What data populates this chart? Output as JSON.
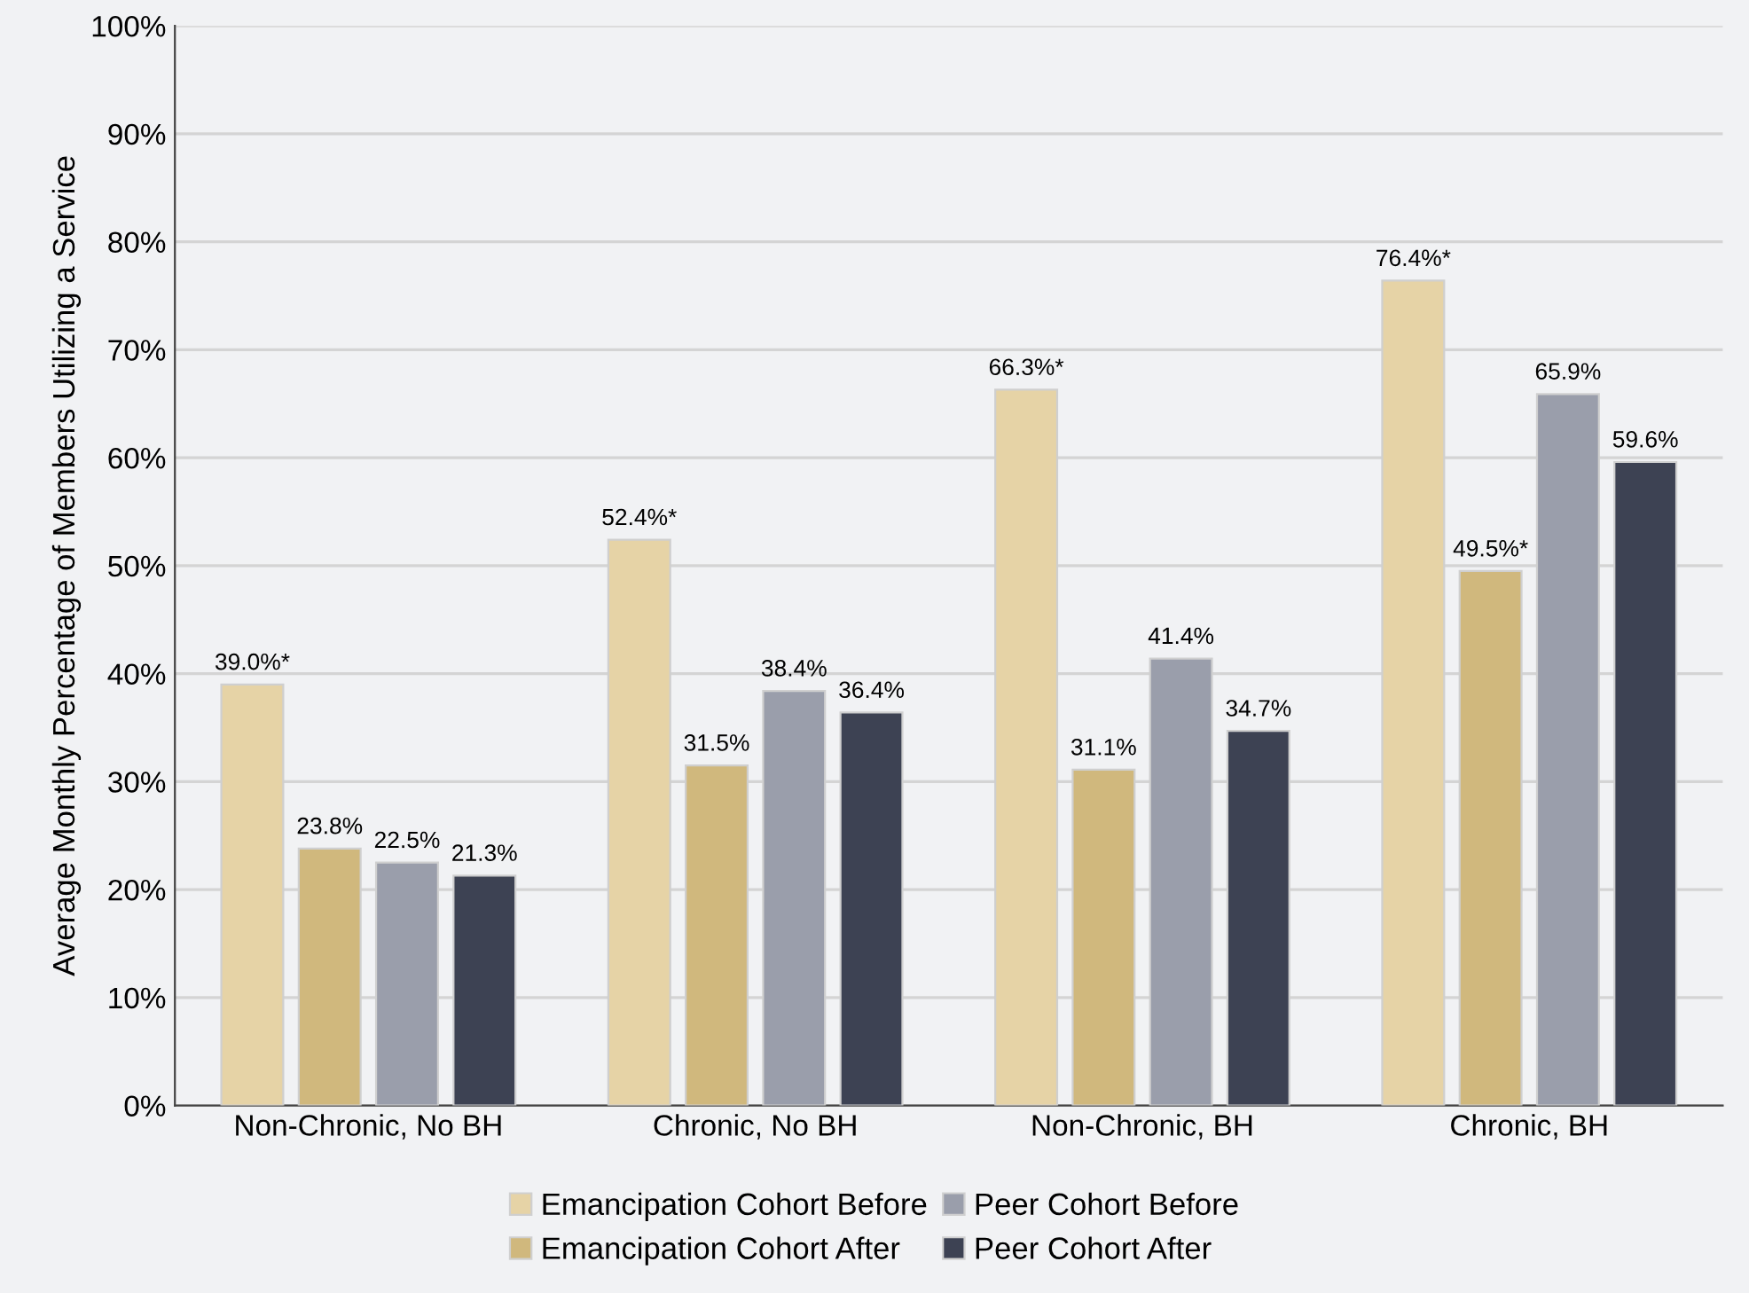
{
  "chart_data": {
    "type": "bar",
    "ylabel": "Average Monthly Percentage of Members Utilizing a Service",
    "categories": [
      "Non-Chronic, No BH",
      "Chronic, No BH",
      "Non-Chronic, BH",
      "Chronic, BH"
    ],
    "series": [
      {
        "name": "Emancipation Cohort Before",
        "color": "#e6d3a6",
        "values": [
          39.0,
          52.4,
          66.3,
          76.4
        ],
        "value_labels": [
          "39.0%*",
          "52.4%*",
          "66.3%*",
          "76.4%*"
        ]
      },
      {
        "name": "Emancipation Cohort After",
        "color": "#d0b87d",
        "values": [
          23.8,
          31.5,
          31.1,
          49.5
        ],
        "value_labels": [
          "23.8%",
          "31.5%",
          "31.1%",
          "49.5%*"
        ]
      },
      {
        "name": "Peer Cohort Before",
        "color": "#9a9eab",
        "values": [
          22.5,
          38.4,
          41.4,
          65.9
        ],
        "value_labels": [
          "22.5%",
          "38.4%",
          "41.4%",
          "65.9%"
        ]
      },
      {
        "name": "Peer Cohort After",
        "color": "#3d4253",
        "values": [
          21.3,
          36.4,
          34.7,
          59.6
        ],
        "value_labels": [
          "21.3%",
          "36.4%",
          "34.7%",
          "59.6%"
        ]
      }
    ],
    "ylim": [
      0,
      100
    ],
    "yticks": [
      {
        "value": 0,
        "label": "0%"
      },
      {
        "value": 10,
        "label": "10%"
      },
      {
        "value": 20,
        "label": "20%"
      },
      {
        "value": 30,
        "label": "30%"
      },
      {
        "value": 40,
        "label": "40%"
      },
      {
        "value": 50,
        "label": "50%"
      },
      {
        "value": 60,
        "label": "60%"
      },
      {
        "value": 70,
        "label": "70%"
      },
      {
        "value": 80,
        "label": "80%"
      },
      {
        "value": 90,
        "label": "90%"
      },
      {
        "value": 100,
        "label": "100%"
      }
    ],
    "grid": "y",
    "legend": "bottom"
  }
}
